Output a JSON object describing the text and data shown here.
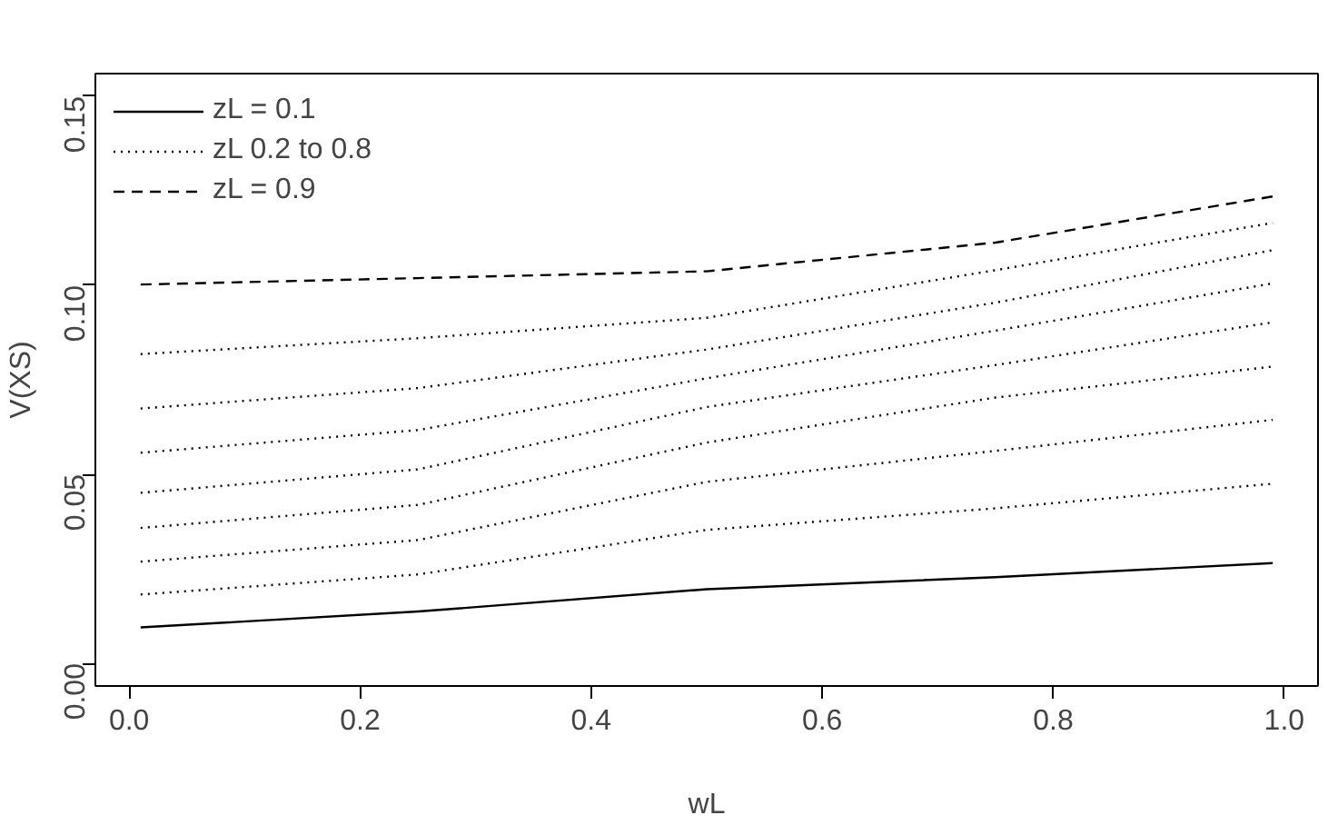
{
  "chart_data": {
    "type": "line",
    "xlabel": "wL",
    "ylabel": "V(XS)",
    "x": [
      0.01,
      0.25,
      0.5,
      0.75,
      0.99
    ],
    "xlim": [
      -0.0292,
      1.0292
    ],
    "ylim": [
      -0.006,
      0.156
    ],
    "xticks": [
      {
        "value": 0.0,
        "label": "0.0"
      },
      0.2,
      0.4,
      0.6,
      0.8,
      {
        "value": 1.0,
        "label": "1.0"
      }
    ],
    "yticks": [
      {
        "value": 0,
        "label": "0.00"
      },
      {
        "value": 0.05,
        "label": "0.05"
      },
      {
        "value": 0.1,
        "label": "0.10"
      },
      {
        "value": 0.15,
        "label": "0.15"
      }
    ],
    "grid": false,
    "legend": "top left",
    "marker": "none",
    "series": [
      {
        "name": "zL = 0.1",
        "color": "#000000",
        "line_style": "solid",
        "values": [
          0.0095,
          0.0137,
          0.0196,
          0.0228,
          0.0265
        ]
      },
      {
        "name": "zL 0.2 to 0.8",
        "color": "#000000",
        "line_style": "dotted",
        "values": [
          0.0182,
          0.0235,
          0.0353,
          0.041,
          0.0475
        ]
      },
      {
        "color": "#000000",
        "line_style": "dotted",
        "values": [
          0.0269,
          0.0326,
          0.048,
          0.0562,
          0.0644
        ]
      },
      {
        "color": "#000000",
        "line_style": "dotted",
        "values": [
          0.0358,
          0.0419,
          0.0584,
          0.0703,
          0.0785
        ]
      },
      {
        "color": "#000000",
        "line_style": "dotted",
        "values": [
          0.0451,
          0.0513,
          0.0678,
          0.0789,
          0.0902
        ]
      },
      {
        "color": "#000000",
        "line_style": "dotted",
        "values": [
          0.0557,
          0.0617,
          0.0754,
          0.088,
          0.1005
        ]
      },
      {
        "color": "#000000",
        "line_style": "dotted",
        "values": [
          0.0674,
          0.0728,
          0.083,
          0.0954,
          0.1093
        ]
      },
      {
        "color": "#000000",
        "line_style": "dotted",
        "values": [
          0.0818,
          0.086,
          0.0914,
          0.104,
          0.1165
        ]
      },
      {
        "name": "zL = 0.9",
        "color": "#000000",
        "line_style": "dashed",
        "values": [
          0.1002,
          0.1019,
          0.1037,
          0.1113,
          0.1235
        ]
      }
    ]
  }
}
